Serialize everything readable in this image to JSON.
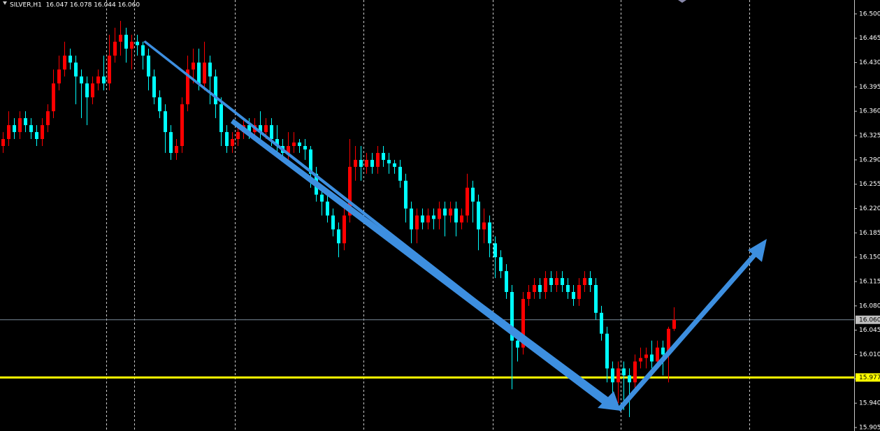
{
  "chart_data": {
    "type": "candlestick",
    "title": "SILVER,H1  16.047 16.078 16.044 16.060",
    "up_color": "#ff0000",
    "down_color": "#00ffff",
    "ylim": [
      15.9,
      16.52
    ],
    "yticks": [
      {
        "value": 16.5,
        "label": "16.500"
      },
      {
        "value": 16.465,
        "label": "16.465"
      },
      {
        "value": 16.43,
        "label": "16.430"
      },
      {
        "value": 16.395,
        "label": "16.395"
      },
      {
        "value": 16.36,
        "label": "16.360"
      },
      {
        "value": 16.325,
        "label": "16.325"
      },
      {
        "value": 16.29,
        "label": "16.290"
      },
      {
        "value": 16.255,
        "label": "16.255"
      },
      {
        "value": 16.22,
        "label": "16.220"
      },
      {
        "value": 16.185,
        "label": "16.185"
      },
      {
        "value": 16.15,
        "label": "16.150"
      },
      {
        "value": 16.115,
        "label": "16.115"
      },
      {
        "value": 16.08,
        "label": "16.080"
      },
      {
        "value": 16.045,
        "label": "16.045"
      },
      {
        "value": 16.01,
        "label": "16.010"
      },
      {
        "value": 15.975,
        "label": "15.975"
      },
      {
        "value": 15.94,
        "label": "15.940"
      },
      {
        "value": 15.905,
        "label": "15.905"
      }
    ],
    "current_price": {
      "value": 16.06,
      "label": "16.060"
    },
    "support_level": 15.977,
    "open": [
      16.31,
      16.32,
      16.34,
      16.33,
      16.35,
      16.34,
      16.33,
      16.32,
      16.34,
      16.36,
      16.4,
      16.42,
      16.44,
      16.43,
      16.41,
      16.4,
      16.38,
      16.4,
      16.41,
      16.4,
      16.44,
      16.46,
      16.47,
      16.45,
      16.46,
      16.455,
      16.44,
      16.41,
      16.38,
      16.36,
      16.33,
      16.3,
      16.31,
      16.37,
      16.42,
      16.43,
      16.4,
      16.43,
      16.41,
      16.37,
      16.33,
      16.31,
      16.32,
      16.33,
      16.34,
      16.33,
      16.34,
      16.33,
      16.34,
      16.32,
      16.31,
      16.3,
      16.31,
      16.315,
      16.31,
      16.305,
      16.27,
      16.24,
      16.23,
      16.21,
      16.19,
      16.17,
      16.21,
      16.28,
      16.29,
      16.28,
      16.29,
      16.28,
      16.3,
      16.29,
      16.285,
      16.28,
      16.26,
      16.22,
      16.19,
      16.21,
      16.2,
      16.21,
      16.205,
      16.22,
      16.21,
      16.22,
      16.2,
      16.21,
      16.25,
      16.23,
      16.19,
      16.2,
      16.17,
      16.15,
      16.13,
      16.1,
      16.03,
      16.02,
      16.09,
      16.1,
      16.11,
      16.1,
      16.12,
      16.11,
      16.12,
      16.11,
      16.1,
      16.09,
      16.11,
      16.12,
      16.11,
      16.07,
      16.04,
      15.99,
      15.97,
      15.99,
      15.98,
      15.97,
      16.0,
      16.005,
      16.01,
      16.0,
      16.02,
      16.01,
      16.047
    ],
    "high": [
      16.33,
      16.36,
      16.35,
      16.36,
      16.36,
      16.35,
      16.34,
      16.35,
      16.37,
      16.42,
      16.44,
      16.46,
      16.45,
      16.44,
      16.42,
      16.41,
      16.41,
      16.42,
      16.44,
      16.47,
      16.48,
      16.49,
      16.48,
      16.47,
      16.47,
      16.46,
      16.45,
      16.42,
      16.39,
      16.37,
      16.34,
      16.32,
      16.38,
      16.44,
      16.45,
      16.45,
      16.46,
      16.44,
      16.42,
      16.38,
      16.34,
      16.33,
      16.34,
      16.35,
      16.35,
      16.35,
      16.36,
      16.35,
      16.35,
      16.34,
      16.32,
      16.33,
      16.33,
      16.32,
      16.32,
      16.31,
      16.28,
      16.25,
      16.24,
      16.22,
      16.2,
      16.23,
      16.32,
      16.31,
      16.31,
      16.3,
      16.3,
      16.31,
      16.31,
      16.3,
      16.29,
      16.29,
      16.27,
      16.23,
      16.22,
      16.22,
      16.22,
      16.22,
      16.23,
      16.23,
      16.23,
      16.23,
      16.22,
      16.27,
      16.26,
      16.24,
      16.22,
      16.21,
      16.18,
      16.16,
      16.14,
      16.11,
      16.04,
      16.1,
      16.11,
      16.12,
      16.12,
      16.13,
      16.13,
      16.13,
      16.13,
      16.12,
      16.11,
      16.12,
      16.13,
      16.13,
      16.12,
      16.08,
      16.05,
      16.0,
      16.0,
      16.0,
      15.99,
      16.01,
      16.02,
      16.02,
      16.03,
      16.03,
      16.03,
      16.05,
      16.078
    ],
    "low": [
      16.3,
      16.31,
      16.32,
      16.32,
      16.33,
      16.32,
      16.31,
      16.31,
      16.33,
      16.35,
      16.39,
      16.41,
      16.42,
      16.37,
      16.35,
      16.34,
      16.37,
      16.39,
      16.39,
      16.39,
      16.43,
      16.44,
      16.43,
      16.42,
      16.44,
      16.42,
      16.39,
      16.37,
      16.35,
      16.3,
      16.29,
      16.29,
      16.3,
      16.36,
      16.4,
      16.39,
      16.39,
      16.37,
      16.35,
      16.31,
      16.3,
      16.3,
      16.31,
      16.32,
      16.32,
      16.32,
      16.32,
      16.32,
      16.31,
      16.3,
      16.29,
      16.29,
      16.3,
      16.3,
      16.29,
      16.25,
      16.23,
      16.21,
      16.2,
      16.18,
      16.15,
      16.16,
      16.2,
      16.26,
      16.26,
      16.27,
      16.27,
      16.27,
      16.28,
      16.27,
      16.27,
      16.25,
      16.2,
      16.17,
      16.17,
      16.19,
      16.19,
      16.19,
      16.19,
      16.18,
      16.2,
      16.18,
      16.19,
      16.2,
      16.2,
      16.16,
      16.17,
      16.15,
      16.12,
      16.12,
      16.09,
      15.96,
      16.0,
      16.01,
      16.08,
      16.09,
      16.09,
      16.09,
      16.1,
      16.1,
      16.1,
      16.09,
      16.08,
      16.08,
      16.1,
      16.1,
      16.06,
      16.03,
      15.97,
      15.95,
      15.94,
      15.93,
      15.92,
      15.96,
      15.99,
      15.99,
      15.99,
      15.99,
      15.98,
      15.97,
      16.044
    ],
    "close": [
      16.32,
      16.34,
      16.33,
      16.35,
      16.34,
      16.33,
      16.32,
      16.34,
      16.36,
      16.4,
      16.42,
      16.44,
      16.43,
      16.41,
      16.4,
      16.38,
      16.4,
      16.41,
      16.4,
      16.44,
      16.46,
      16.47,
      16.45,
      16.46,
      16.455,
      16.44,
      16.41,
      16.38,
      16.36,
      16.33,
      16.3,
      16.31,
      16.37,
      16.42,
      16.43,
      16.4,
      16.43,
      16.41,
      16.37,
      16.33,
      16.31,
      16.32,
      16.33,
      16.34,
      16.33,
      16.34,
      16.33,
      16.34,
      16.32,
      16.31,
      16.3,
      16.31,
      16.315,
      16.31,
      16.305,
      16.27,
      16.24,
      16.23,
      16.21,
      16.19,
      16.17,
      16.21,
      16.28,
      16.29,
      16.28,
      16.29,
      16.28,
      16.3,
      16.29,
      16.285,
      16.28,
      16.26,
      16.22,
      16.19,
      16.21,
      16.2,
      16.21,
      16.205,
      16.22,
      16.21,
      16.22,
      16.2,
      16.21,
      16.25,
      16.23,
      16.19,
      16.2,
      16.17,
      16.15,
      16.13,
      16.1,
      16.03,
      16.02,
      16.09,
      16.1,
      16.11,
      16.1,
      16.12,
      16.11,
      16.12,
      16.11,
      16.1,
      16.09,
      16.11,
      16.12,
      16.11,
      16.07,
      16.04,
      15.99,
      15.97,
      15.99,
      15.98,
      15.97,
      16.0,
      16.005,
      16.01,
      16.0,
      16.02,
      16.01,
      16.047,
      16.06
    ]
  }
}
